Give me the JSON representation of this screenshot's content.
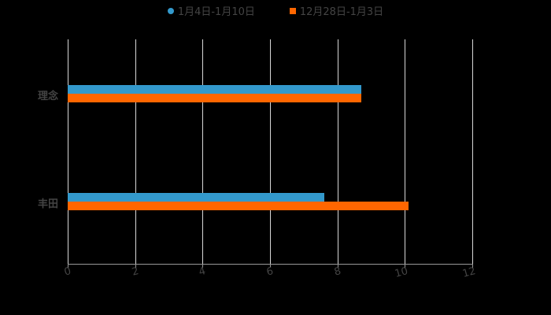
{
  "chart_data": {
    "type": "bar",
    "orientation": "horizontal",
    "title": "",
    "categories": [
      "理念",
      "丰田"
    ],
    "series": [
      {
        "name": "1月4日-1月10日",
        "color": "#3399cc",
        "values": [
          8.7,
          7.6
        ]
      },
      {
        "name": "12月28日-1月3日",
        "color": "#ff6600",
        "values": [
          8.7,
          10.1
        ]
      }
    ],
    "xlabel": "",
    "ylabel": "",
    "xlim": [
      0,
      12
    ],
    "xticks": [
      "0",
      "2",
      "4",
      "6",
      "8",
      "10",
      "12"
    ],
    "grid": true,
    "legend_position": "top"
  },
  "legend": {
    "items": [
      {
        "label": "1月4日-1月10日",
        "color": "#3399cc",
        "shape": "circle"
      },
      {
        "label": "12月28日-1月3日",
        "color": "#ff6600",
        "shape": "square"
      }
    ]
  }
}
